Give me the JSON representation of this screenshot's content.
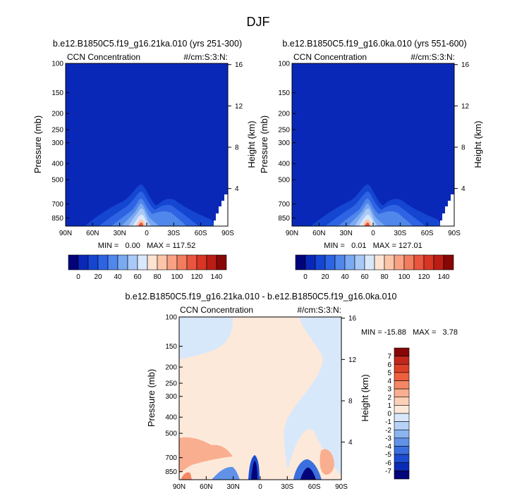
{
  "figure_title": "DJF",
  "chart_data": [
    {
      "type": "heatmap",
      "id": "panel1",
      "title": "b.e12.B1850C5.f19_g16.21ka.010 (yrs 251-300)",
      "left_label": "CCN Concentration",
      "right_label": "#/cm:S:3:N:",
      "xlabel": "",
      "ylabel": "Pressure (mb)",
      "ylabel_right": "Height (km)",
      "x_ticks": [
        "90N",
        "60N",
        "30N",
        "0",
        "30S",
        "60S",
        "90S"
      ],
      "y_ticks": [
        "100",
        "150",
        "200",
        "250",
        "300",
        "400",
        "500",
        "700",
        "850"
      ],
      "y_ticks_right": [
        "16",
        "12",
        "8",
        "4"
      ],
      "stats": "MIN =   0.00   MAX = 117.52",
      "value_min": 0.0,
      "value_max": 117.52,
      "peak_latitude": -10,
      "peak_pressure_mb": 900
    },
    {
      "type": "heatmap",
      "id": "panel2",
      "title": "b.e12.B1850C5.f19_g16.0ka.010 (yrs 551-600)",
      "left_label": "CCN Concentration",
      "right_label": "#/cm:S:3:N:",
      "xlabel": "",
      "ylabel": "Pressure (mb)",
      "ylabel_right": "Height (km)",
      "x_ticks": [
        "90N",
        "60N",
        "30N",
        "0",
        "30S",
        "60S",
        "90S"
      ],
      "y_ticks": [
        "100",
        "150",
        "200",
        "250",
        "300",
        "400",
        "500",
        "700",
        "850"
      ],
      "y_ticks_right": [
        "16",
        "12",
        "8",
        "4"
      ],
      "stats": "MIN =   0.01   MAX = 127.01",
      "value_min": 0.01,
      "value_max": 127.01,
      "peak_latitude": -10,
      "peak_pressure_mb": 900
    },
    {
      "type": "heatmap",
      "id": "panel3",
      "title": "b.e12.B1850C5.f19_g16.21ka.010 - b.e12.B1850C5.f19_g16.0ka.010",
      "left_label": "CCN Concentration",
      "right_label": "#/cm:S:3:N:",
      "xlabel": "",
      "ylabel": "Pressure (mb)",
      "ylabel_right": "Height (km)",
      "x_ticks": [
        "90N",
        "60N",
        "30N",
        "0",
        "30S",
        "60S",
        "90S"
      ],
      "y_ticks": [
        "100",
        "150",
        "200",
        "250",
        "300",
        "400",
        "500",
        "700",
        "850"
      ],
      "y_ticks_right": [
        "16",
        "12",
        "8",
        "4"
      ],
      "stats": "MIN = -15.88   MAX =   3.78",
      "value_min": -15.88,
      "value_max": 3.78
    }
  ],
  "colorbar_abs": {
    "labels": [
      "0",
      "20",
      "40",
      "60",
      "80",
      "100",
      "120",
      "140"
    ],
    "colors": [
      "#03037a",
      "#0a28b8",
      "#1446d2",
      "#2e64e3",
      "#5087ea",
      "#7ba9f2",
      "#a9c9f7",
      "#d9e8fb",
      "#fde3d2",
      "#fcc5aa",
      "#f8a283",
      "#f27d5e",
      "#e9553e",
      "#d83524",
      "#bb1d14",
      "#870707"
    ]
  },
  "colorbar_diff": {
    "labels": [
      "7",
      "6",
      "5",
      "4",
      "3",
      "2",
      "1",
      "0",
      "-1",
      "-2",
      "-3",
      "-4",
      "-5",
      "-6",
      "-7"
    ],
    "colors": [
      "#870707",
      "#c0281c",
      "#de3f28",
      "#ed5f3e",
      "#f48765",
      "#f9ae8f",
      "#fcd0b7",
      "#fde9da",
      "#d8e8fb",
      "#b6d2f7",
      "#8cb5f0",
      "#6292e8",
      "#3b6fdf",
      "#1c4ccf",
      "#0a2bb3",
      "#03037a"
    ]
  }
}
